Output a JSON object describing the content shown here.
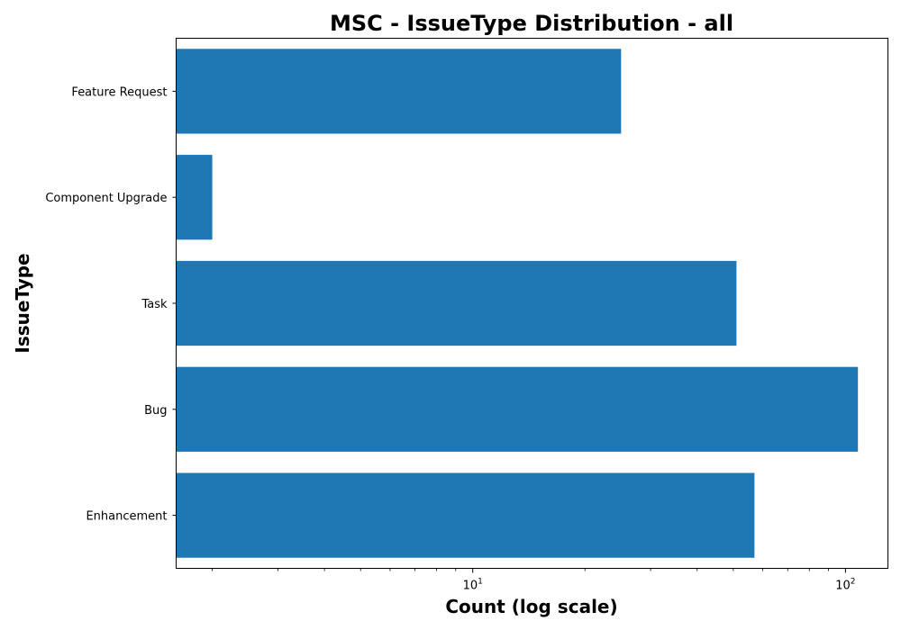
{
  "chart_data": {
    "type": "bar",
    "orientation": "horizontal",
    "title": "MSC - IssueType Distribution - all",
    "xlabel": "Count (log scale)",
    "ylabel": "IssueType",
    "x_scale": "log",
    "xlim": [
      1.6,
      130
    ],
    "x_tick_labels": [
      {
        "value": 10,
        "base": "10",
        "exp": "1"
      },
      {
        "value": 100,
        "base": "10",
        "exp": "2"
      }
    ],
    "categories": [
      "Enhancement",
      "Bug",
      "Task",
      "Component Upgrade",
      "Feature Request"
    ],
    "values": [
      57,
      108,
      51,
      2,
      25
    ],
    "bar_color": "#1f77b4",
    "grid": false,
    "legend": false
  }
}
